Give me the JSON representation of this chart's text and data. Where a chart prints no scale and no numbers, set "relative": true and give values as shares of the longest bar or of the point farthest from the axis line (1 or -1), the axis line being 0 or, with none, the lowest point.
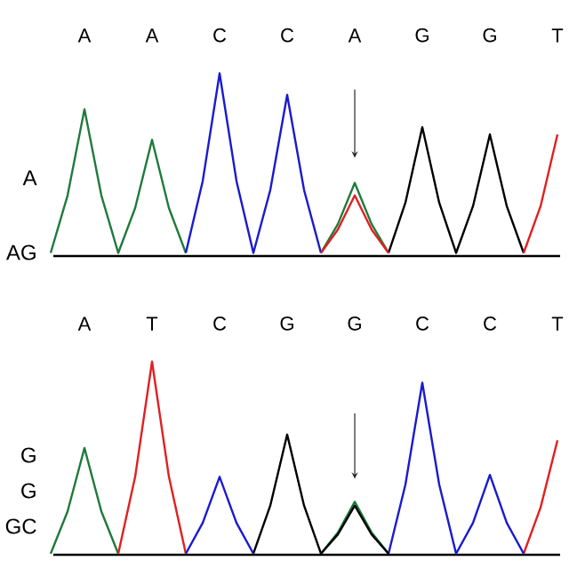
{
  "chart_data": [
    {
      "type": "line",
      "relative": true,
      "tick_labels": "x",
      "categories": [
        null,
        null,
        "A",
        null,
        null,
        null,
        "A",
        null,
        null,
        null,
        "C",
        null,
        null,
        null,
        "C",
        null,
        null,
        null,
        "A",
        null,
        null,
        null,
        "G",
        null,
        null,
        null,
        "G",
        null,
        null,
        null,
        "T"
      ],
      "annotations": [
        "A",
        "AG"
      ],
      "series": [
        {
          "color": "#1f7a3c",
          "values": [
            0,
            0.32,
            0.8,
            0.32,
            0,
            0.25,
            0.63,
            0.25,
            0,
            null,
            null,
            null,
            null,
            null,
            null,
            null,
            0,
            0.16,
            0.39,
            0.16,
            0,
            null,
            null,
            null,
            null,
            null,
            null,
            null,
            null,
            null,
            null
          ]
        },
        {
          "color": "#1a1ad0",
          "values": [
            null,
            null,
            null,
            null,
            null,
            null,
            null,
            null,
            0,
            0.4,
            1.0,
            0.4,
            0,
            0.35,
            0.88,
            0.35,
            0,
            null,
            null,
            null,
            null,
            null,
            null,
            null,
            null,
            null,
            null,
            null,
            null,
            null,
            null
          ]
        },
        {
          "color": "#000000",
          "values": [
            null,
            null,
            null,
            null,
            null,
            null,
            null,
            null,
            null,
            null,
            null,
            null,
            null,
            null,
            null,
            null,
            null,
            null,
            null,
            null,
            0,
            0.28,
            0.7,
            0.28,
            0,
            0.26,
            0.66,
            0.26,
            0,
            null,
            null
          ]
        },
        {
          "color": "#e02020",
          "values": [
            null,
            null,
            null,
            null,
            null,
            null,
            null,
            null,
            null,
            null,
            null,
            null,
            null,
            null,
            null,
            null,
            0,
            0.13,
            0.32,
            0.13,
            0,
            null,
            null,
            null,
            null,
            null,
            null,
            null,
            0,
            0.26,
            0.66
          ]
        }
      ]
    },
    {
      "type": "line",
      "relative": true,
      "tick_labels": "x",
      "categories": [
        null,
        null,
        "A",
        null,
        null,
        null,
        "T",
        null,
        null,
        null,
        "C",
        null,
        null,
        null,
        "G",
        null,
        null,
        null,
        "G",
        null,
        null,
        null,
        "C",
        null,
        null,
        null,
        "C",
        null,
        null,
        null,
        "T"
      ],
      "annotations": [
        "G",
        "G",
        "GC"
      ],
      "series": [
        {
          "color": "#1f7a3c",
          "values": [
            0,
            0.22,
            0.55,
            0.22,
            0,
            null,
            null,
            null,
            null,
            null,
            null,
            null,
            null,
            null,
            null,
            null,
            0,
            0.11,
            0.27,
            0.11,
            0,
            null,
            null,
            null,
            null,
            null,
            null,
            null,
            null,
            null,
            null
          ]
        },
        {
          "color": "#e02020",
          "values": [
            null,
            null,
            null,
            null,
            0,
            0.4,
            1.0,
            0.4,
            0,
            null,
            null,
            null,
            null,
            null,
            null,
            null,
            null,
            null,
            null,
            null,
            null,
            null,
            null,
            null,
            null,
            null,
            null,
            null,
            0,
            0.24,
            0.59
          ]
        },
        {
          "color": "#1a1ad0",
          "values": [
            null,
            null,
            null,
            null,
            null,
            null,
            null,
            null,
            0,
            0.16,
            0.4,
            0.16,
            0,
            null,
            null,
            null,
            null,
            null,
            null,
            null,
            0,
            0.36,
            0.89,
            0.36,
            0,
            0.16,
            0.41,
            0.16,
            0,
            null,
            null
          ]
        },
        {
          "color": "#000000",
          "values": [
            null,
            null,
            null,
            null,
            null,
            null,
            null,
            null,
            null,
            null,
            null,
            null,
            0,
            0.25,
            0.62,
            0.25,
            0,
            0.1,
            0.25,
            0.1,
            0,
            null,
            null,
            null,
            null,
            null,
            null,
            null,
            null,
            null,
            null
          ]
        }
      ]
    }
  ]
}
